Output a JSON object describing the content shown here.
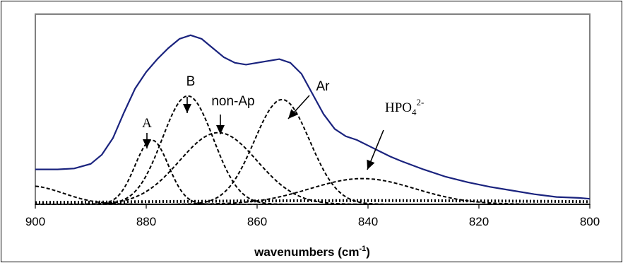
{
  "chart_data": {
    "type": "line",
    "title": "",
    "xlabel": "wavenumbers (cm",
    "xlabel_sup": "-1",
    "xlabel_tail": ")",
    "ylabel": "",
    "xlim": [
      900,
      800
    ],
    "x_reversed": true,
    "ylim": [
      0,
      1
    ],
    "grid": false,
    "x_ticks": [
      "900",
      "880",
      "860",
      "840",
      "820",
      "800"
    ],
    "x_tick_values": [
      900,
      880,
      860,
      840,
      820,
      800
    ],
    "colors": {
      "envelope": "#1a237e",
      "components": "#000000",
      "frame": "#808080"
    },
    "series": [
      {
        "style": "solid",
        "points": [
          [
            900,
            0.19
          ],
          [
            896,
            0.19
          ],
          [
            893,
            0.195
          ],
          [
            890,
            0.22
          ],
          [
            888,
            0.27
          ],
          [
            886,
            0.36
          ],
          [
            884,
            0.5
          ],
          [
            882,
            0.63
          ],
          [
            880,
            0.72
          ],
          [
            878,
            0.79
          ],
          [
            876,
            0.85
          ],
          [
            874,
            0.9
          ],
          [
            872,
            0.92
          ],
          [
            870,
            0.9
          ],
          [
            868,
            0.85
          ],
          [
            866,
            0.8
          ],
          [
            864,
            0.77
          ],
          [
            862,
            0.76
          ],
          [
            860,
            0.77
          ],
          [
            858,
            0.78
          ],
          [
            856,
            0.79
          ],
          [
            854,
            0.77
          ],
          [
            852,
            0.71
          ],
          [
            850,
            0.6
          ],
          [
            848,
            0.49
          ],
          [
            846,
            0.41
          ],
          [
            844,
            0.37
          ],
          [
            842,
            0.35
          ],
          [
            840,
            0.32
          ],
          [
            838,
            0.29
          ],
          [
            836,
            0.26
          ],
          [
            834,
            0.235
          ],
          [
            830,
            0.19
          ],
          [
            826,
            0.15
          ],
          [
            822,
            0.12
          ],
          [
            818,
            0.095
          ],
          [
            814,
            0.075
          ],
          [
            810,
            0.055
          ],
          [
            806,
            0.04
          ],
          [
            802,
            0.035
          ],
          [
            800,
            0.03
          ]
        ]
      },
      {
        "style": "dashed",
        "gauss": {
          "center": 879,
          "height": 0.35,
          "sigma": 3.0
        }
      },
      {
        "style": "dashed",
        "gauss": {
          "center": 872.5,
          "height": 0.59,
          "sigma": 4.6
        }
      },
      {
        "style": "dashed",
        "gauss": {
          "center": 867,
          "height": 0.39,
          "sigma": 7.0
        }
      },
      {
        "style": "dashed",
        "gauss": {
          "center": 855.5,
          "height": 0.57,
          "sigma": 5.0
        }
      },
      {
        "style": "dashed",
        "gauss": {
          "center": 841,
          "height": 0.14,
          "sigma": 9.5
        }
      },
      {
        "style": "dashed",
        "gauss": {
          "center": 901,
          "height": 0.1,
          "sigma": 6.0
        }
      },
      {
        "style": "dotted",
        "gauss": {
          "center": 840,
          "height": 0.02,
          "sigma": 50
        }
      }
    ],
    "annotations": [
      {
        "text": "A",
        "font": "serif",
        "x": 879
      },
      {
        "text": "B",
        "font": "sans",
        "x": 872.5
      },
      {
        "text": "non-Ap",
        "font": "sans",
        "x": 867
      },
      {
        "text": "Ar",
        "font": "sans",
        "x": 855.5
      },
      {
        "text": "HPO",
        "sub": "4",
        "sup": "2-",
        "font": "serif",
        "x": 841
      }
    ]
  }
}
